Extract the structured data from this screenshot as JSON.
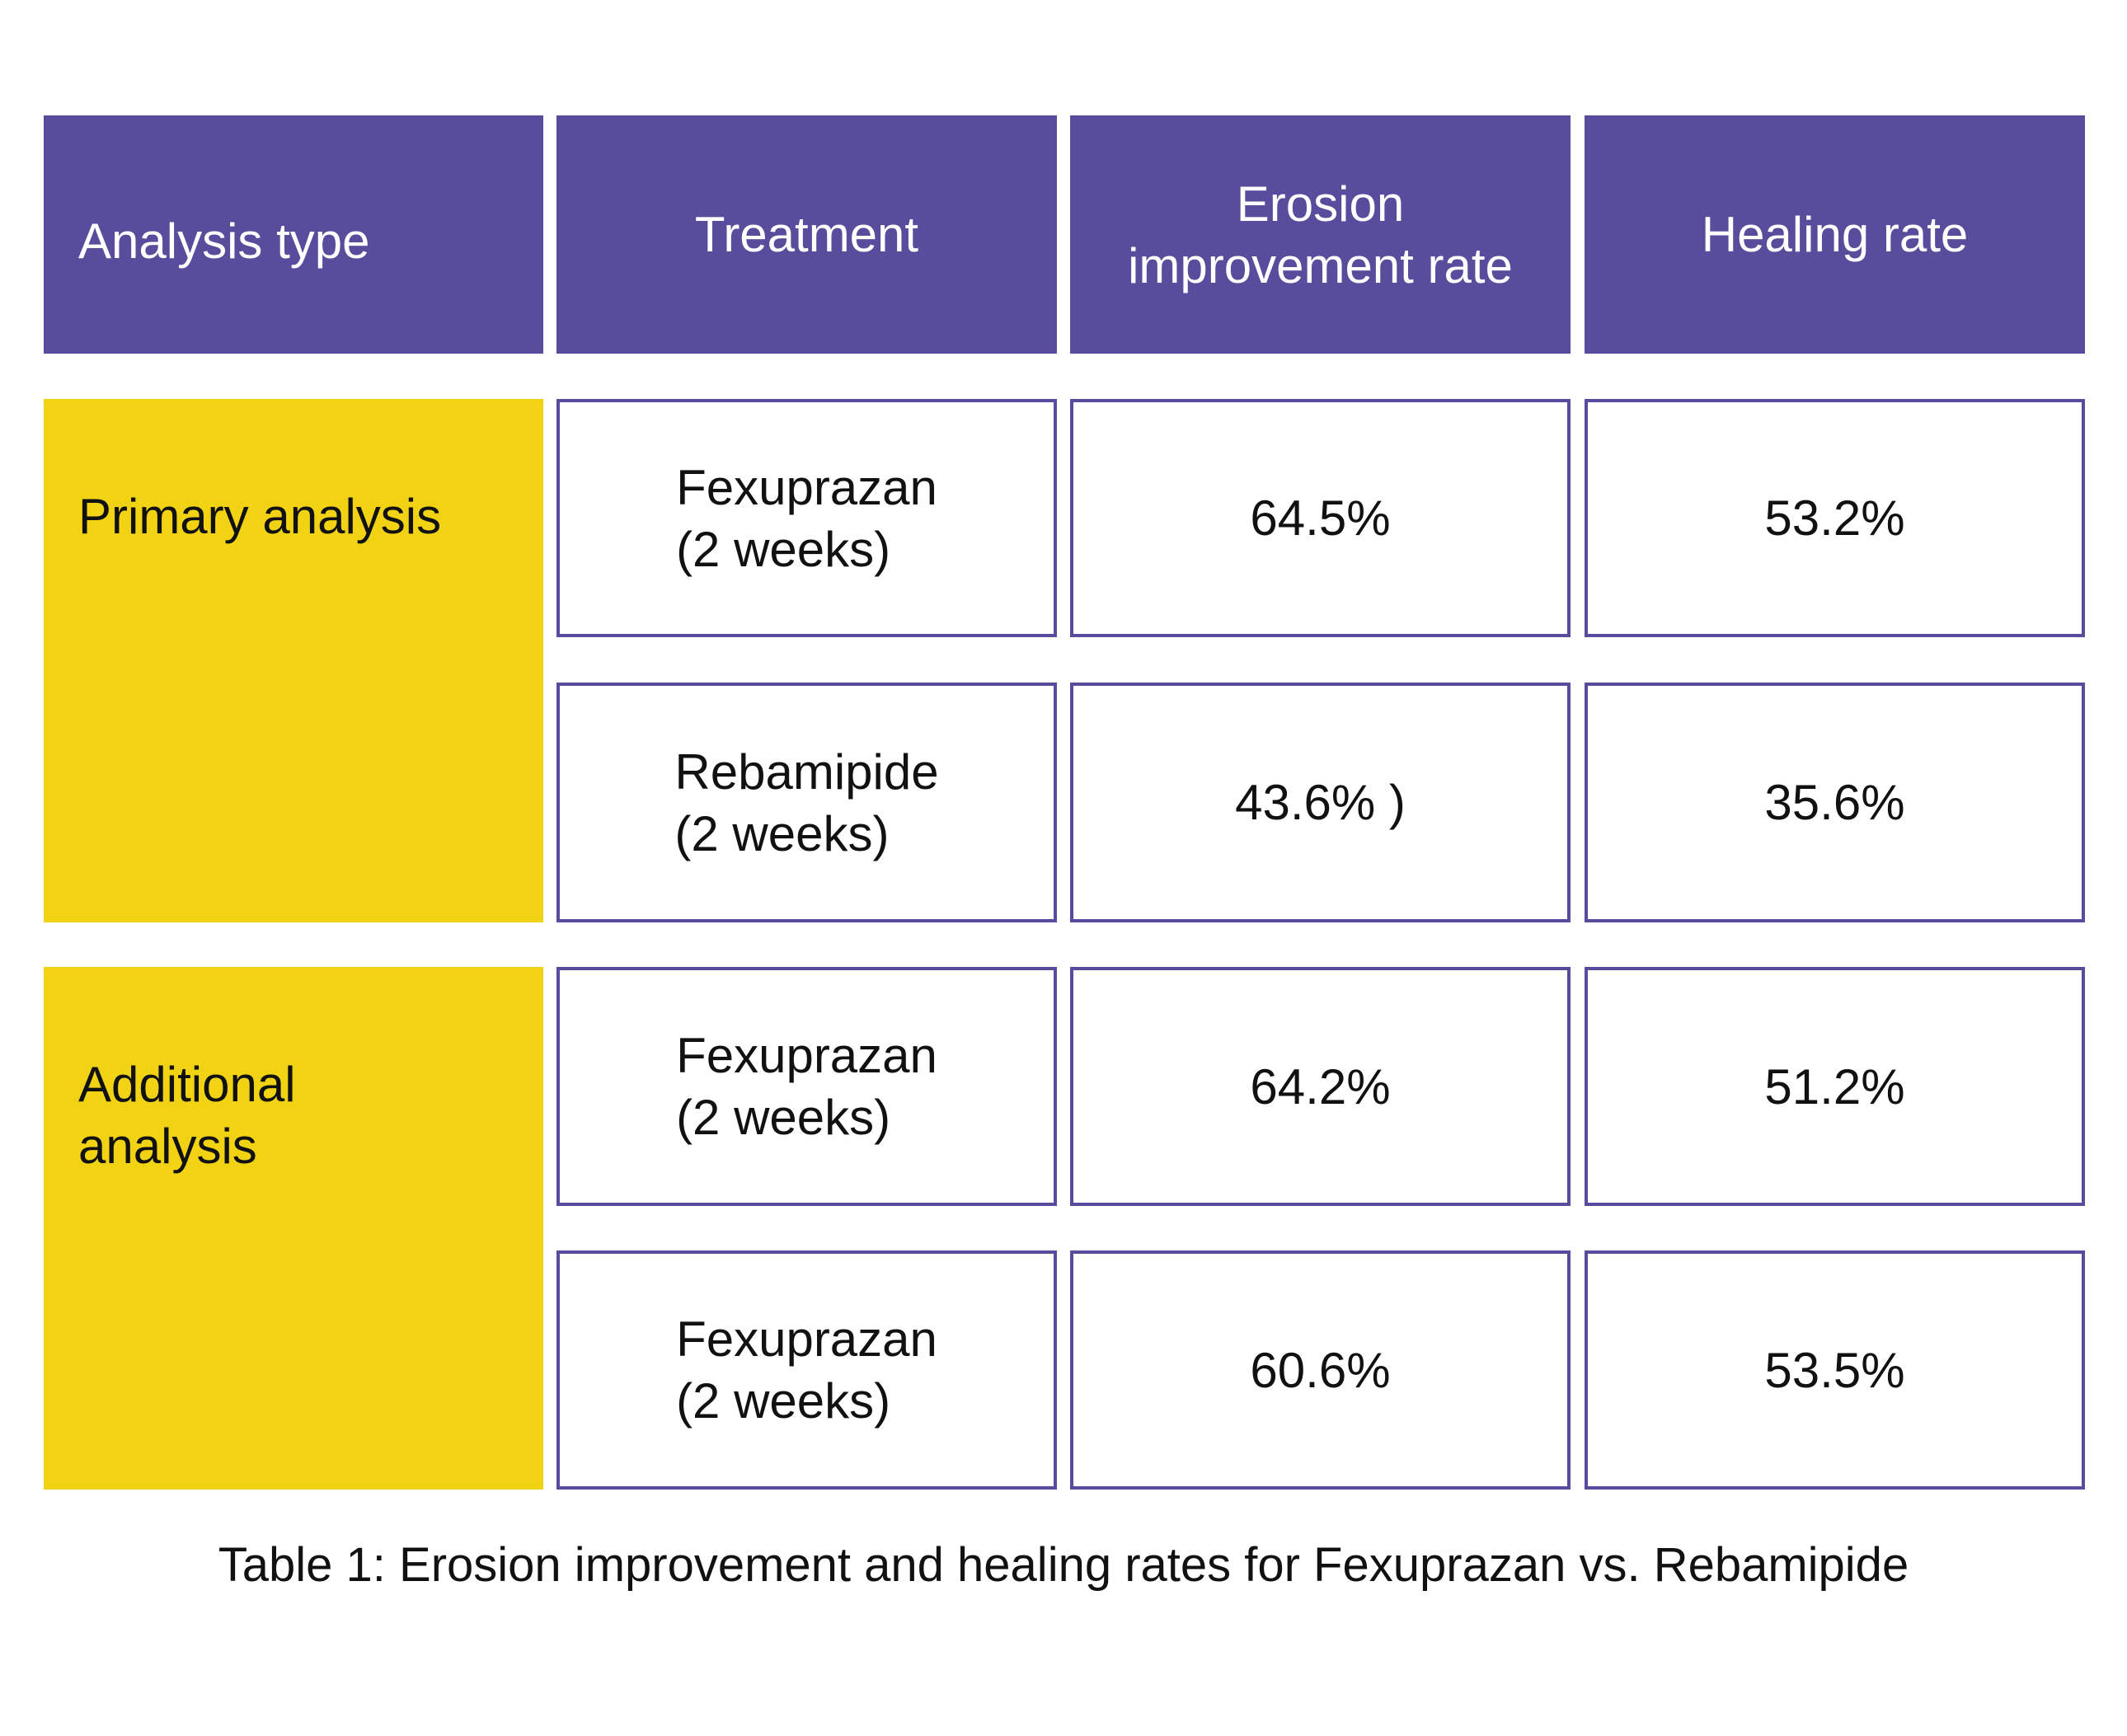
{
  "colors": {
    "header": "#584D9C",
    "group": "#F2D314",
    "border": "#584D9C"
  },
  "headers": [
    "Analysis type",
    "Treatment",
    "Erosion improvement rate",
    "Healing rate"
  ],
  "groups": [
    {
      "label": "Primary analysis",
      "rows": [
        {
          "treatment_line1": "Fexuprazan",
          "treatment_line2": "(2 weeks)",
          "erosion": "64.5%",
          "healing": "53.2%"
        },
        {
          "treatment_line1": "Rebamipide",
          "treatment_line2": "(2 weeks)",
          "erosion": "43.6% )",
          "healing": "35.6%"
        }
      ]
    },
    {
      "label_line1": "Additional",
      "label_line2": "analysis",
      "rows": [
        {
          "treatment_line1": "Fexuprazan",
          "treatment_line2": "(2 weeks)",
          "erosion": "64.2%",
          "healing": "51.2%"
        },
        {
          "treatment_line1": "Fexuprazan",
          "treatment_line2": "(2 weeks)",
          "erosion": "60.6%",
          "healing": "53.5%"
        }
      ]
    }
  ],
  "caption": "Table 1: Erosion improvement and healing rates for Fexuprazan vs. Rebamipide"
}
